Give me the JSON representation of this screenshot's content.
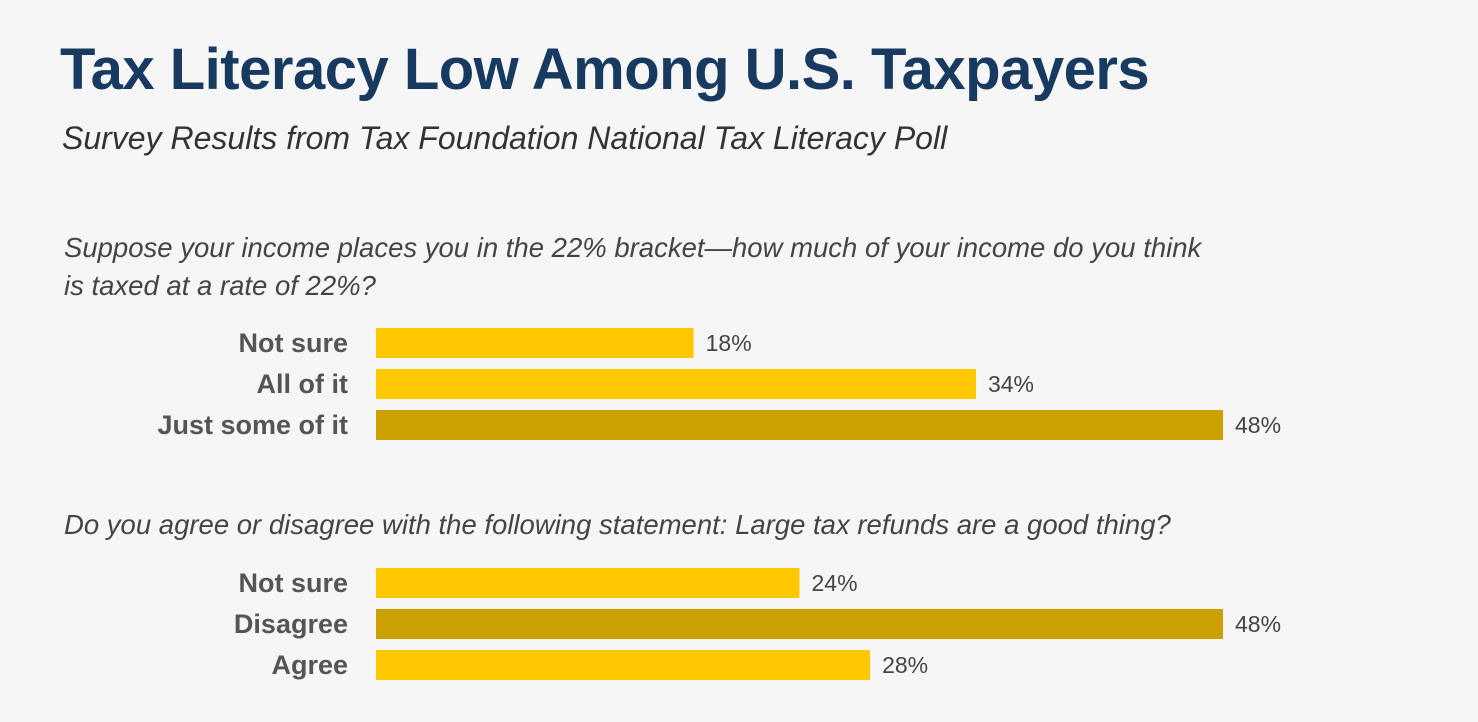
{
  "title": "Tax Literacy Low Among U.S. Taxpayers",
  "subtitle": "Survey Results from Tax Foundation National Tax Literacy Poll",
  "colors": {
    "background": "#f6f6f6",
    "title": "#183a60",
    "bar": "#ffc800",
    "bar_highlight": "#cca000"
  },
  "chart_data": [
    {
      "type": "bar",
      "orientation": "horizontal",
      "title": "Suppose your income places you in the 22% bracket—how much of your income do you think is taxed at a rate of 22%?",
      "categories": [
        "Not sure",
        "All of it",
        "Just some of it"
      ],
      "values": [
        18,
        34,
        48
      ],
      "value_labels": [
        "18%",
        "34%",
        "48%"
      ],
      "highlight": [
        false,
        false,
        true
      ],
      "xlim": [
        0,
        48
      ],
      "grid": false
    },
    {
      "type": "bar",
      "orientation": "horizontal",
      "title": "Do you agree or disagree with the following statement: Large tax refunds are a good thing?",
      "categories": [
        "Not sure",
        "Disagree",
        "Agree"
      ],
      "values": [
        24,
        48,
        28
      ],
      "value_labels": [
        "24%",
        "48%",
        "28%"
      ],
      "highlight": [
        false,
        true,
        false
      ],
      "xlim": [
        0,
        48
      ],
      "grid": false
    }
  ]
}
